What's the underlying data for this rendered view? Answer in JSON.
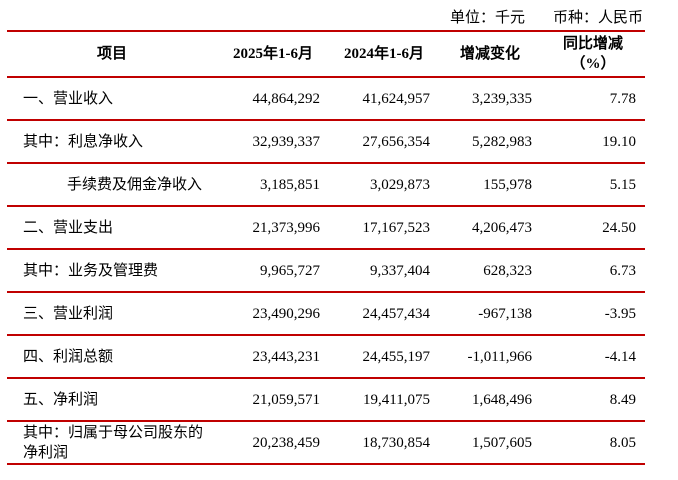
{
  "meta": {
    "unit_label": "单位：千元",
    "currency_label": "币种：人民币"
  },
  "colors": {
    "rule": "#c00000",
    "text": "#000000",
    "background": "#ffffff"
  },
  "table": {
    "headers": [
      "项目",
      "2025年1-6月",
      "2024年1-6月",
      "增减变化"
    ],
    "header_pct": {
      "line1": "同比增减",
      "line2": "（%）"
    },
    "rows": [
      {
        "label": "一、营业收入",
        "indent": false,
        "v2025": "44,864,292",
        "v2024": "41,624,957",
        "change": "3,239,335",
        "pct": "7.78"
      },
      {
        "label": "其中：利息净收入",
        "indent": false,
        "v2025": "32,939,337",
        "v2024": "27,656,354",
        "change": "5,282,983",
        "pct": "19.10"
      },
      {
        "label": "手续费及佣金净收入",
        "indent": true,
        "v2025": "3,185,851",
        "v2024": "3,029,873",
        "change": "155,978",
        "pct": "5.15"
      },
      {
        "label": "二、营业支出",
        "indent": false,
        "v2025": "21,373,996",
        "v2024": "17,167,523",
        "change": "4,206,473",
        "pct": "24.50"
      },
      {
        "label": "其中：业务及管理费",
        "indent": false,
        "v2025": "9,965,727",
        "v2024": "9,337,404",
        "change": "628,323",
        "pct": "6.73"
      },
      {
        "label": "三、营业利润",
        "indent": false,
        "v2025": "23,490,296",
        "v2024": "24,457,434",
        "change": "-967,138",
        "pct": "-3.95"
      },
      {
        "label": "四、利润总额",
        "indent": false,
        "v2025": "23,443,231",
        "v2024": "24,455,197",
        "change": "-1,011,966",
        "pct": "-4.14"
      },
      {
        "label": "五、净利润",
        "indent": false,
        "v2025": "21,059,571",
        "v2024": "19,411,075",
        "change": "1,648,496",
        "pct": "8.49"
      },
      {
        "label": "其中：归属于母公司股东的净利润",
        "indent": false,
        "v2025": "20,238,459",
        "v2024": "18,730,854",
        "change": "1,507,605",
        "pct": "8.05"
      }
    ]
  }
}
